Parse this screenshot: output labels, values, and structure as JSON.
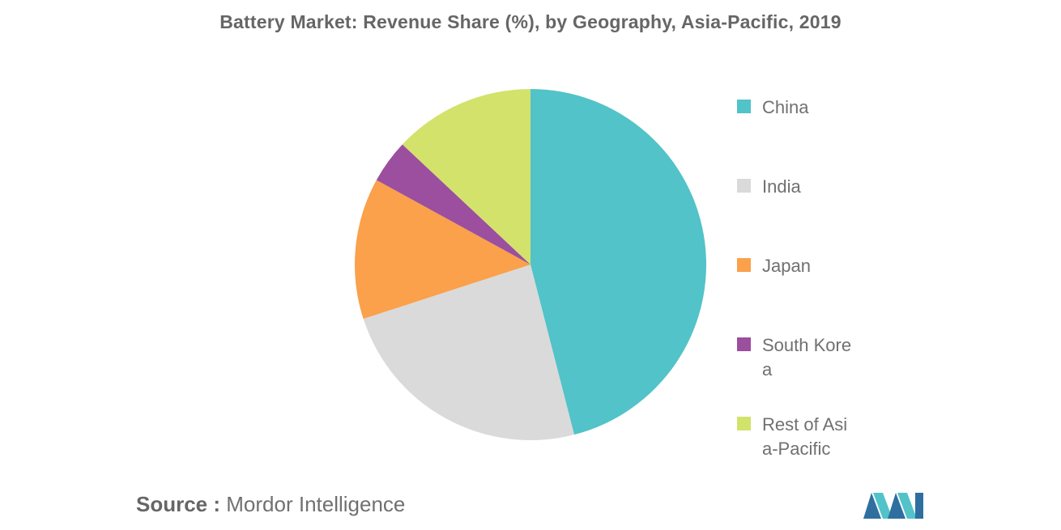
{
  "chart_data": {
    "type": "pie",
    "title": "Battery Market: Revenue Share (%), by Geography, Asia-Pacific, 2019",
    "categories": [
      "China",
      "India",
      "Japan",
      "South Korea",
      "Rest of Asia-Pacific"
    ],
    "values": [
      46,
      24,
      13,
      4,
      13
    ],
    "colors": [
      "#52c3c8",
      "#dadada",
      "#fba04b",
      "#9b4f9e",
      "#d3e26b"
    ],
    "legend_position": "right",
    "legend_labels": [
      "China",
      "India",
      "Japan",
      "South Korea",
      "Rest of Asia-Pacific"
    ]
  },
  "source": {
    "label": "Source :",
    "text": "Mordor Intelligence"
  },
  "logo": {
    "icon": "mordor-intelligence-logo-icon",
    "colors": [
      "#2f6fa0",
      "#52c3c8"
    ]
  }
}
